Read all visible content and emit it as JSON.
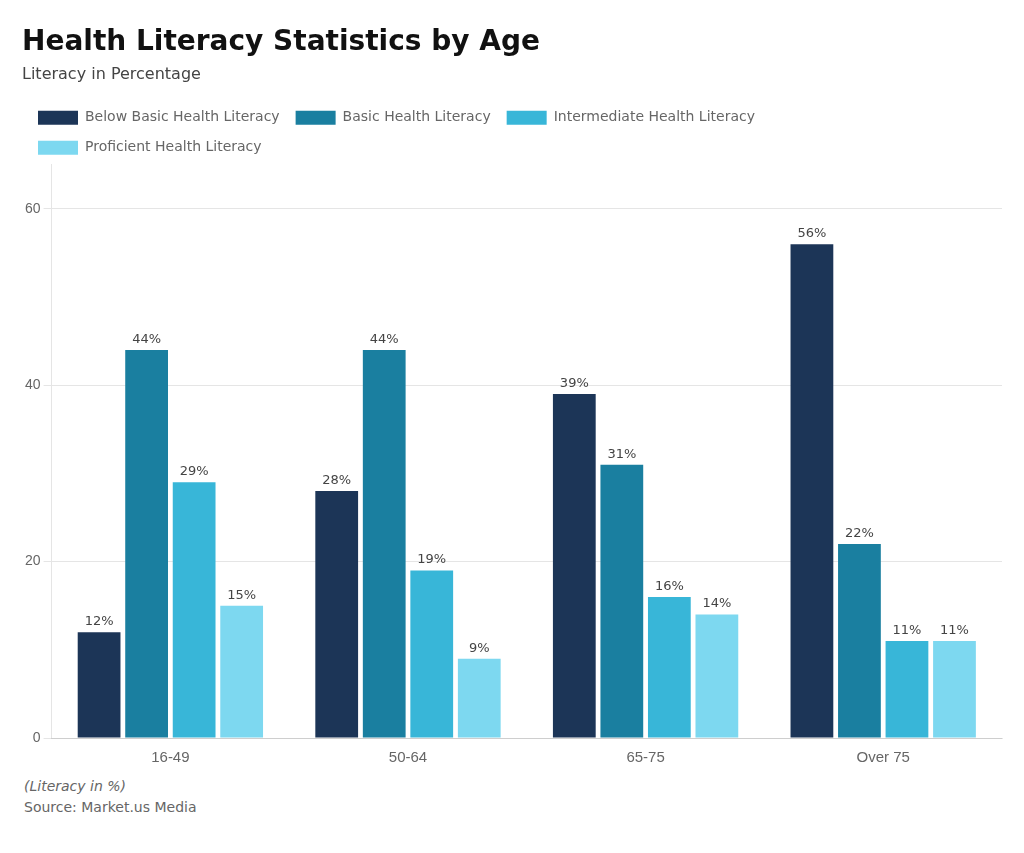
{
  "chart_data": {
    "type": "bar",
    "title": "Health Literacy Statistics by Age",
    "subtitle": "Literacy in Percentage",
    "categories": [
      "16-49",
      "50-64",
      "65-75",
      "Over 75"
    ],
    "series": [
      {
        "name": "Below Basic Health Literacy",
        "color": "#1c3557",
        "values": [
          12,
          28,
          39,
          56
        ],
        "value_labels": [
          "12%",
          "28%",
          "39%",
          "56%"
        ]
      },
      {
        "name": "Basic Health Literacy",
        "color": "#1a7fa0",
        "values": [
          44,
          44,
          31,
          22
        ],
        "value_labels": [
          "44%",
          "44%",
          "31%",
          "22%"
        ]
      },
      {
        "name": "Intermediate Health Literacy",
        "color": "#38b6d8",
        "values": [
          29,
          19,
          16,
          11
        ],
        "value_labels": [
          "29%",
          "19%",
          "16%",
          "11%"
        ]
      },
      {
        "name": "Proficient Health Literacy",
        "color": "#7dd8f0",
        "values": [
          15,
          9,
          14,
          11
        ],
        "value_labels": [
          "15%",
          "9%",
          "14%",
          "11%"
        ]
      }
    ],
    "ylim": [
      0,
      65
    ],
    "yticks": [
      0,
      20,
      40,
      60
    ],
    "grid": true,
    "legend": "top",
    "data_labels": true,
    "annotations": [
      "(Literacy in %)",
      "Source: Market.us Media"
    ]
  }
}
